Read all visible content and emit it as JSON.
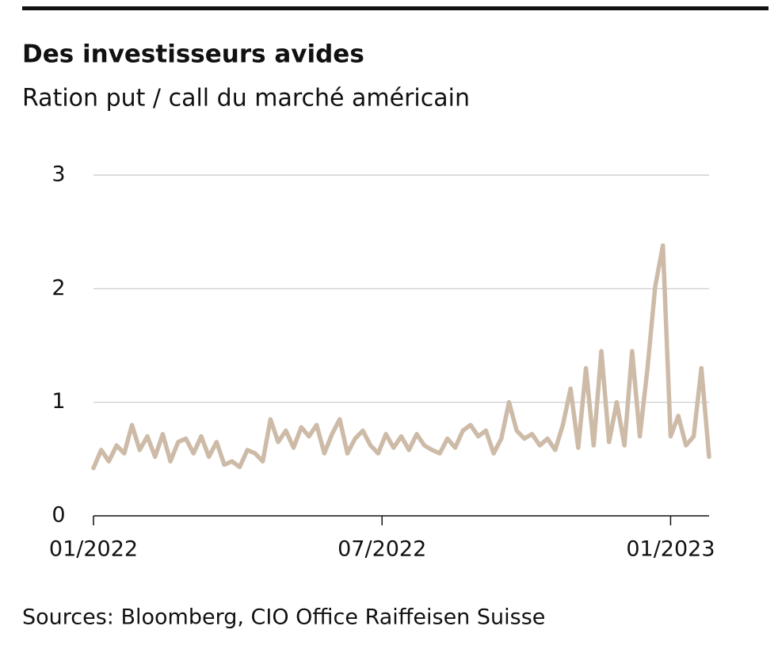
{
  "chart_data": {
    "type": "line",
    "title": "Des investisseurs avides",
    "subtitle": "Ration put / call du marché américain",
    "source": "Sources: Bloomberg, CIO Office Raiffeisen Suisse",
    "x": [
      0,
      0.16,
      0.32,
      0.48,
      0.64,
      0.8,
      0.96,
      1.12,
      1.28,
      1.44,
      1.6,
      1.76,
      1.92,
      2.08,
      2.24,
      2.4,
      2.56,
      2.72,
      2.88,
      3.04,
      3.2,
      3.36,
      3.52,
      3.68,
      3.84,
      4,
      4.16,
      4.32,
      4.48,
      4.64,
      4.8,
      4.96,
      5.12,
      5.28,
      5.44,
      5.6,
      5.76,
      5.92,
      6.08,
      6.24,
      6.4,
      6.56,
      6.72,
      6.88,
      7.04,
      7.2,
      7.36,
      7.52,
      7.68,
      7.84,
      8,
      8.16,
      8.32,
      8.48,
      8.64,
      8.8,
      8.96,
      9.12,
      9.28,
      9.44,
      9.6,
      9.76,
      9.92,
      10.08,
      10.24,
      10.4,
      10.56,
      10.72,
      10.88,
      11.04,
      11.2,
      11.36,
      11.52,
      11.68,
      11.84,
      12,
      12.16,
      12.32,
      12.48,
      12.64,
      12.8
    ],
    "series": [
      {
        "name": "Put/Call",
        "color": "#cdbba8",
        "values": [
          0.42,
          0.58,
          0.48,
          0.62,
          0.55,
          0.8,
          0.58,
          0.7,
          0.52,
          0.72,
          0.48,
          0.65,
          0.68,
          0.55,
          0.7,
          0.52,
          0.65,
          0.45,
          0.48,
          0.43,
          0.58,
          0.55,
          0.48,
          0.85,
          0.65,
          0.75,
          0.6,
          0.78,
          0.7,
          0.8,
          0.55,
          0.72,
          0.85,
          0.55,
          0.68,
          0.75,
          0.62,
          0.55,
          0.72,
          0.6,
          0.7,
          0.58,
          0.72,
          0.62,
          0.58,
          0.55,
          0.68,
          0.6,
          0.75,
          0.8,
          0.7,
          0.75,
          0.55,
          0.68,
          1.0,
          0.75,
          0.68,
          0.72,
          0.62,
          0.68,
          0.58,
          0.8,
          1.12,
          0.6,
          1.3,
          0.62,
          1.45,
          0.65,
          1.0,
          0.62,
          1.45,
          0.7,
          1.3,
          2.02,
          2.38,
          0.7,
          0.88,
          0.62,
          0.7,
          1.3,
          0.52
        ]
      }
    ],
    "xlim": [
      0,
      12.8
    ],
    "xticks": [
      {
        "value": 0,
        "label": "01/2022"
      },
      {
        "value": 6,
        "label": "07/2022"
      },
      {
        "value": 12,
        "label": "01/2023"
      }
    ],
    "ylim": [
      0,
      3
    ],
    "yticks": [
      0,
      1,
      2,
      3
    ],
    "grid": true
  }
}
